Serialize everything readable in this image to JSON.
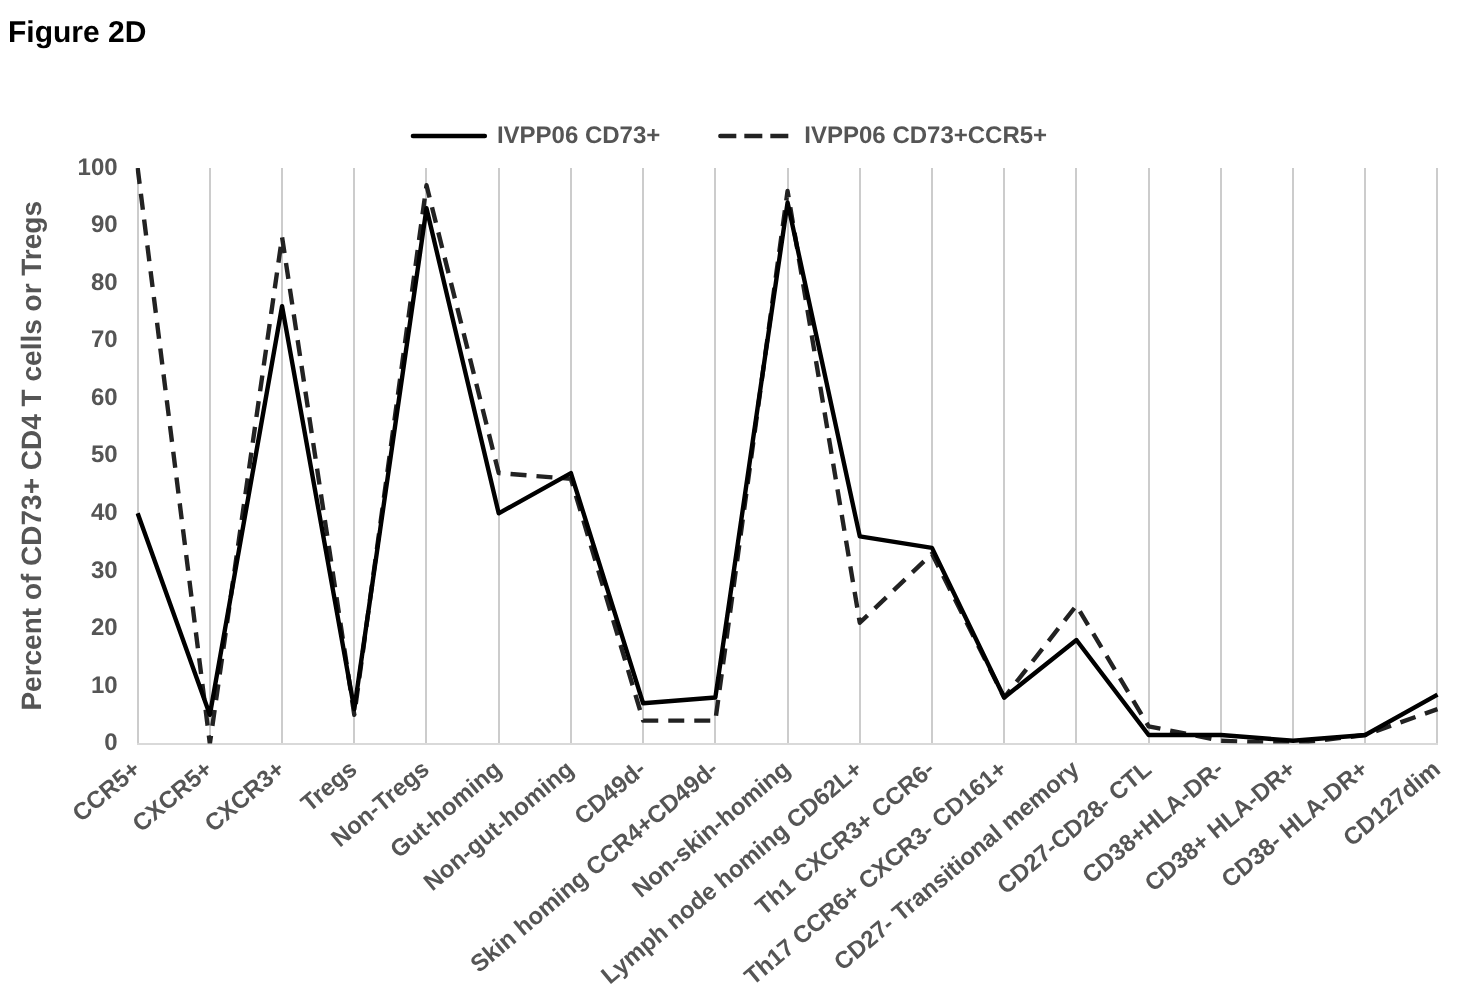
{
  "chart_data": {
    "type": "line",
    "title": "Figure 2D",
    "ylabel": "Percent of CD73+ CD4 T cells or Tregs",
    "categories": [
      "CCR5+",
      "CXCR5+",
      "CXCR3+",
      "Tregs",
      "Non-Tregs",
      "Gut-homing",
      "Non-gut-homing",
      "CD49d-",
      "Skin homing CCR4+CD49d-",
      "Non-skin-homing",
      "Lymph node homing CD62L+",
      "Th1 CXCR3+ CCR6-",
      "Th17 CCR6+ CXCR3- CD161+",
      "CD27- Transitional memory",
      "CD27-CD28- CTL",
      "CD38+HLA-DR-",
      "CD38+ HLA-DR+",
      "CD38- HLA-DR+",
      "CD127dim"
    ],
    "series": [
      {
        "name": "IVPP06 CD73+",
        "color": "#000000",
        "line_style": "solid",
        "values": [
          40,
          5,
          76,
          6,
          93,
          40,
          47,
          7,
          8,
          94,
          36,
          34,
          8,
          18,
          1.5,
          1.5,
          0.5,
          1.5,
          8.5
        ]
      },
      {
        "name": "IVPP06 CD73+CCR5+",
        "color": "#222222",
        "line_style": "dashed",
        "values": [
          100,
          0,
          88,
          5,
          97,
          47,
          46,
          4,
          4,
          96,
          21,
          33,
          8,
          24,
          3,
          0.5,
          0,
          1.5,
          6
        ]
      }
    ],
    "ylim": [
      0,
      100
    ],
    "yticks": [
      0,
      10,
      20,
      30,
      40,
      50,
      60,
      70,
      80,
      90,
      100
    ],
    "grid": "x",
    "legend": "top",
    "marker": "none"
  }
}
